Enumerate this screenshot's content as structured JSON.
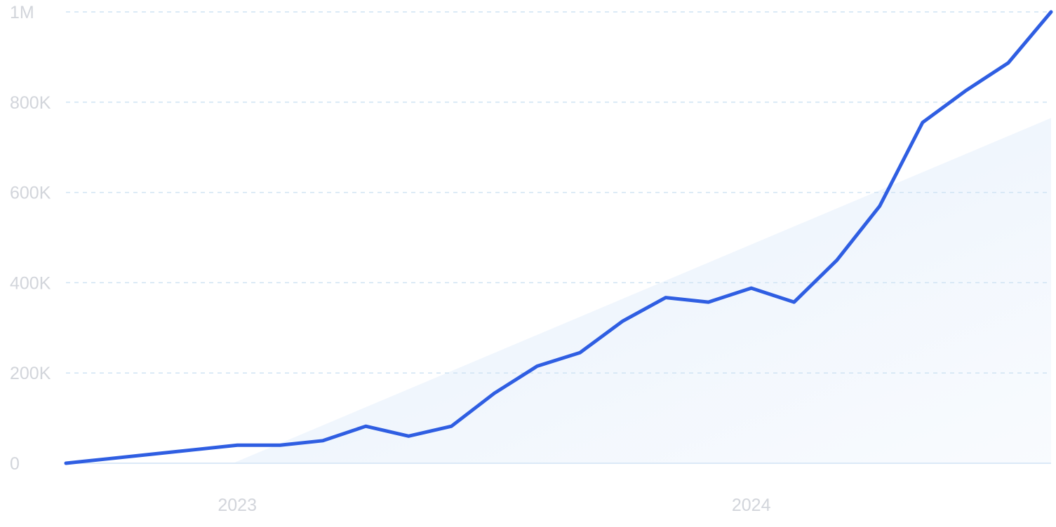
{
  "chart_data": {
    "type": "line",
    "title": "",
    "xlabel": "",
    "ylabel": "",
    "x_ticks": [
      {
        "label": "2023",
        "x": 4
      },
      {
        "label": "2024",
        "x": 16
      }
    ],
    "y_ticks": [
      {
        "label": "0",
        "value": 0
      },
      {
        "label": "200K",
        "value": 200000
      },
      {
        "label": "400K",
        "value": 400000
      },
      {
        "label": "600K",
        "value": 600000
      },
      {
        "label": "800K",
        "value": 800000
      },
      {
        "label": "1M",
        "value": 1000000
      }
    ],
    "xlim": [
      0,
      23
    ],
    "ylim": [
      0,
      1000000
    ],
    "grid": true,
    "series": [
      {
        "color": "#2f5ee2",
        "x": [
          0,
          1,
          2,
          3,
          4,
          5,
          6,
          7,
          8,
          9,
          10,
          11,
          12,
          13,
          14,
          15,
          16,
          17,
          18,
          19,
          20,
          21,
          22,
          23
        ],
        "values": [
          0,
          10000,
          20000,
          30000,
          40000,
          40000,
          50000,
          82000,
          60000,
          82000,
          155000,
          215000,
          245000,
          315000,
          367000,
          357000,
          388000,
          357000,
          450000,
          570000,
          755000,
          825000,
          887000,
          1000000
        ]
      }
    ],
    "trend_area": {
      "color": "#e8f2fc",
      "x": [
        3.9,
        23
      ],
      "values": [
        0,
        765000
      ]
    }
  }
}
